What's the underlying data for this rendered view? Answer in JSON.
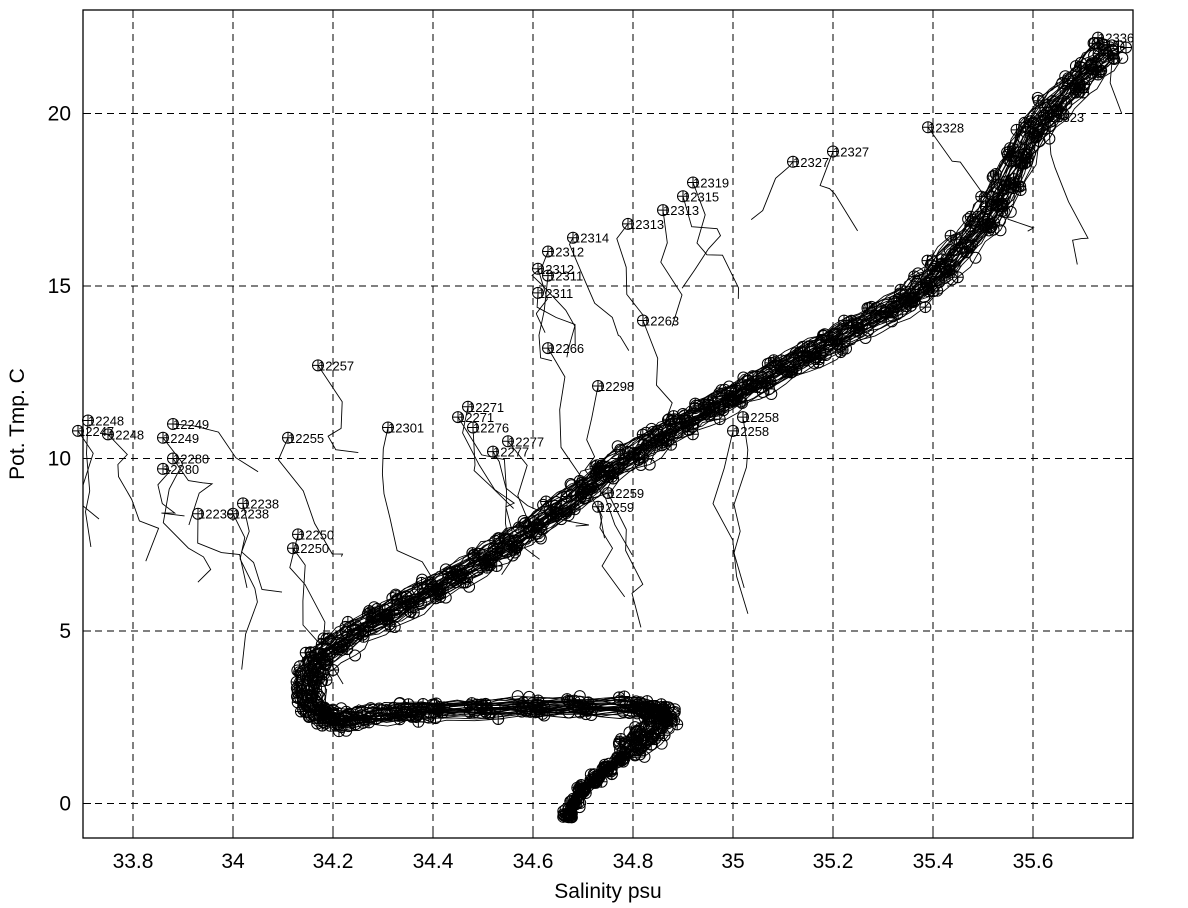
{
  "chart_data": {
    "type": "scatter",
    "title": "",
    "xlabel": "Salinity psu",
    "ylabel": "Pot. Tmp. C",
    "xlim": [
      33.7,
      35.8
    ],
    "ylim": [
      -1,
      23
    ],
    "grid": true,
    "x_ticks": [
      33.8,
      34.0,
      34.2,
      34.4,
      34.6,
      34.8,
      35.0,
      35.2,
      35.4,
      35.6
    ],
    "x_tick_labels": [
      "33.8",
      "34",
      "34.2",
      "34.4",
      "34.6",
      "34.8",
      "35",
      "35.2",
      "35.4",
      "35.6"
    ],
    "y_ticks": [
      0,
      5,
      10,
      15,
      20
    ],
    "y_tick_labels": [
      "0",
      "5",
      "10",
      "15",
      "20"
    ],
    "marker_styles": [
      "circle",
      "plus"
    ],
    "color": "#000000",
    "main_curve": [
      {
        "x": 34.67,
        "y": -0.3
      },
      {
        "x": 34.7,
        "y": 0.4
      },
      {
        "x": 34.75,
        "y": 1.0
      },
      {
        "x": 34.8,
        "y": 1.6
      },
      {
        "x": 34.85,
        "y": 2.3
      },
      {
        "x": 34.86,
        "y": 2.7
      },
      {
        "x": 34.8,
        "y": 2.8
      },
      {
        "x": 34.6,
        "y": 2.8
      },
      {
        "x": 34.4,
        "y": 2.7
      },
      {
        "x": 34.3,
        "y": 2.6
      },
      {
        "x": 34.2,
        "y": 2.4
      },
      {
        "x": 34.16,
        "y": 2.8
      },
      {
        "x": 34.15,
        "y": 3.5
      },
      {
        "x": 34.17,
        "y": 4.2
      },
      {
        "x": 34.25,
        "y": 5.0
      },
      {
        "x": 34.35,
        "y": 5.8
      },
      {
        "x": 34.45,
        "y": 6.6
      },
      {
        "x": 34.55,
        "y": 7.5
      },
      {
        "x": 34.65,
        "y": 8.5
      },
      {
        "x": 34.75,
        "y": 9.6
      },
      {
        "x": 34.85,
        "y": 10.6
      },
      {
        "x": 34.95,
        "y": 11.4
      },
      {
        "x": 35.05,
        "y": 12.2
      },
      {
        "x": 35.15,
        "y": 13.0
      },
      {
        "x": 35.25,
        "y": 13.8
      },
      {
        "x": 35.35,
        "y": 14.6
      },
      {
        "x": 35.42,
        "y": 15.5
      },
      {
        "x": 35.5,
        "y": 16.8
      },
      {
        "x": 35.55,
        "y": 18.0
      },
      {
        "x": 35.6,
        "y": 19.5
      },
      {
        "x": 35.68,
        "y": 20.8
      },
      {
        "x": 35.75,
        "y": 21.8
      }
    ],
    "station_labels": [
      {
        "text": "12336",
        "x": 35.73,
        "y": 22.2
      },
      {
        "text": "12323",
        "x": 35.63,
        "y": 19.9
      },
      {
        "text": "12328",
        "x": 35.39,
        "y": 19.6
      },
      {
        "text": "12327",
        "x": 35.2,
        "y": 18.9
      },
      {
        "text": "12327",
        "x": 35.12,
        "y": 18.6
      },
      {
        "text": "12319",
        "x": 34.92,
        "y": 18.0
      },
      {
        "text": "12315",
        "x": 34.9,
        "y": 17.6
      },
      {
        "text": "12313",
        "x": 34.86,
        "y": 17.2
      },
      {
        "text": "12313",
        "x": 34.79,
        "y": 16.8
      },
      {
        "text": "12314",
        "x": 34.68,
        "y": 16.4
      },
      {
        "text": "12312",
        "x": 34.63,
        "y": 16.0
      },
      {
        "text": "12312",
        "x": 34.61,
        "y": 15.5
      },
      {
        "text": "12311",
        "x": 34.63,
        "y": 15.3
      },
      {
        "text": "12311",
        "x": 34.61,
        "y": 14.8
      },
      {
        "text": "12263",
        "x": 34.82,
        "y": 14.0
      },
      {
        "text": "12266",
        "x": 34.63,
        "y": 13.2
      },
      {
        "text": "12298",
        "x": 34.73,
        "y": 12.1
      },
      {
        "text": "12258",
        "x": 35.02,
        "y": 11.2
      },
      {
        "text": "12258",
        "x": 35.0,
        "y": 10.8
      },
      {
        "text": "12257",
        "x": 34.17,
        "y": 12.7
      },
      {
        "text": "12255",
        "x": 34.11,
        "y": 10.6
      },
      {
        "text": "12249",
        "x": 33.88,
        "y": 11.0
      },
      {
        "text": "12249",
        "x": 33.86,
        "y": 10.6
      },
      {
        "text": "12248",
        "x": 33.71,
        "y": 11.1
      },
      {
        "text": "12248",
        "x": 33.75,
        "y": 10.7
      },
      {
        "text": "12247",
        "x": 33.69,
        "y": 10.8
      },
      {
        "text": "12280",
        "x": 33.88,
        "y": 10.0
      },
      {
        "text": "12280",
        "x": 33.86,
        "y": 9.7
      },
      {
        "text": "12271",
        "x": 34.47,
        "y": 11.5
      },
      {
        "text": "12271",
        "x": 34.45,
        "y": 11.2
      },
      {
        "text": "12276",
        "x": 34.48,
        "y": 10.9
      },
      {
        "text": "12277",
        "x": 34.55,
        "y": 10.5
      },
      {
        "text": "12277",
        "x": 34.52,
        "y": 10.2
      },
      {
        "text": "12301",
        "x": 34.31,
        "y": 10.9
      },
      {
        "text": "12250",
        "x": 34.13,
        "y": 7.8
      },
      {
        "text": "12250",
        "x": 34.12,
        "y": 7.4
      },
      {
        "text": "12238",
        "x": 34.02,
        "y": 8.7
      },
      {
        "text": "12238",
        "x": 34.0,
        "y": 8.4
      },
      {
        "text": "12239",
        "x": 33.93,
        "y": 8.4
      },
      {
        "text": "12259",
        "x": 34.75,
        "y": 9.0
      },
      {
        "text": "12259",
        "x": 34.73,
        "y": 8.6
      }
    ]
  }
}
